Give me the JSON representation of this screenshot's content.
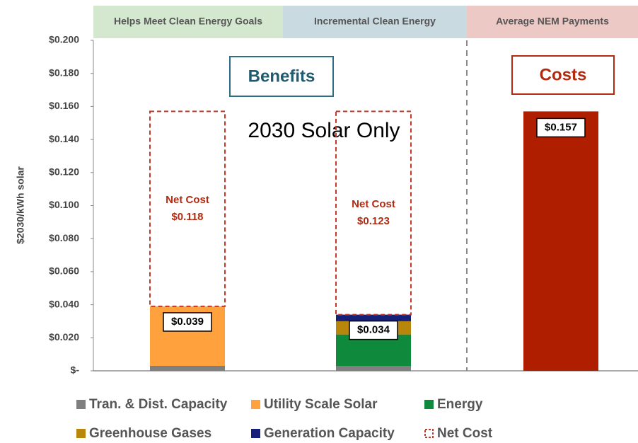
{
  "chart_data": {
    "type": "bar",
    "stacked": true,
    "subtitle": "2030 Solar Only",
    "ylabel": "$2030/kWh solar",
    "headers": [
      {
        "label": "Helps Meet Clean Energy Goals",
        "color": "#d4e8d0"
      },
      {
        "label": "Incremental Clean Energy",
        "color": "#c9dbe0"
      },
      {
        "label": "Average NEM Payments",
        "color": "#ecc9c4"
      }
    ],
    "annotations": [
      "Benefits"
    ],
    "categories": [
      null,
      null,
      null
    ],
    "series": [
      {
        "name": "Tran. & Dist. Capacity",
        "color": "#7f7f7f",
        "values": [
          0.003,
          0.003,
          null
        ]
      },
      {
        "name": "Utility Scale Solar",
        "color": "#ffa13d",
        "values": [
          0.036,
          null,
          null
        ]
      },
      {
        "name": "Energy",
        "color": "#0f8a3c",
        "values": [
          null,
          0.019,
          null
        ]
      },
      {
        "name": "Greenhouse Gases",
        "color": "#b8860b",
        "values": [
          null,
          0.008,
          null
        ]
      },
      {
        "name": "Generation Capacity",
        "color": "#14207a",
        "values": [
          null,
          0.004,
          null
        ]
      },
      {
        "name": "Net Cost",
        "color": "#c0392b",
        "dashed": true,
        "values": [
          0.118,
          0.123,
          null
        ],
        "value_labels": [
          "$0.118",
          "$0.123",
          null
        ]
      },
      {
        "name": "Costs",
        "color": "#b01e00",
        "in_legend": false,
        "values": [
          null,
          null,
          0.157
        ],
        "value_labels": [
          null,
          null,
          "$0.157"
        ]
      }
    ],
    "totals": {
      "values": [
        0.039,
        0.034,
        null
      ],
      "value_labels": [
        "$0.039",
        "$0.034",
        null
      ]
    },
    "ylim": [
      0,
      0.2
    ],
    "yticks": [
      {
        "value": 0,
        "label": "$-"
      },
      {
        "value": 0.02,
        "label": "$0.020"
      },
      {
        "value": 0.04,
        "label": "$0.040"
      },
      {
        "value": 0.06,
        "label": "$0.060"
      },
      {
        "value": 0.08,
        "label": "$0.080"
      },
      {
        "value": 0.1,
        "label": "$0.100"
      },
      {
        "value": 0.12,
        "label": "$0.120"
      },
      {
        "value": 0.14,
        "label": "$0.140"
      },
      {
        "value": 0.16,
        "label": "$0.160"
      },
      {
        "value": 0.18,
        "label": "$0.180"
      },
      {
        "value": 0.2,
        "label": "$0.200"
      }
    ],
    "grid": false,
    "legend": "bottom"
  }
}
